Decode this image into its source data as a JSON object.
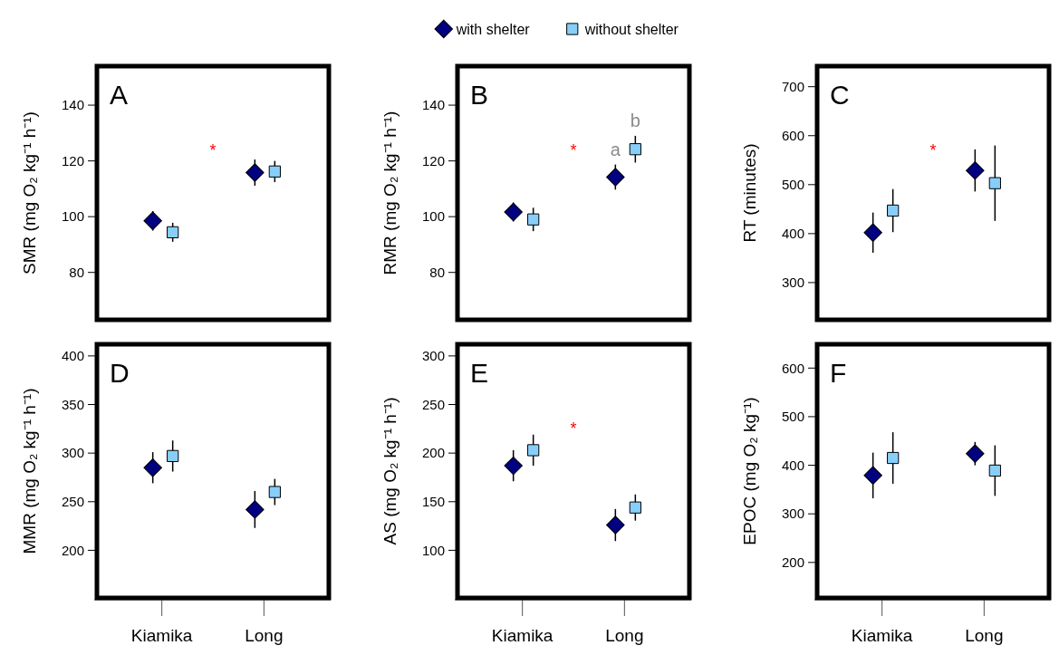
{
  "chart_data": [
    {
      "type": "scatter",
      "title": "A",
      "ylabel": "SMR (mg O₂ kg⁻¹ h⁻¹)",
      "categories": [
        "Kiamika",
        "Long"
      ],
      "ylim": [
        63,
        154
      ],
      "yticks": [
        80,
        100,
        120,
        140
      ],
      "tick_labels": "y",
      "legend": "top",
      "series": [
        {
          "name": "with shelter",
          "color": "#000080",
          "marker": "diamond",
          "x": [
            "Kiamika",
            "Long"
          ],
          "values": [
            98.5,
            115.8
          ],
          "errors": [
            3.5,
            4.7
          ]
        },
        {
          "name": "without shelter",
          "color": "#87cefa",
          "marker": "square",
          "x": [
            "Kiamika",
            "Long"
          ],
          "values": [
            94.4,
            116.2
          ],
          "errors": [
            3.4,
            3.8
          ]
        }
      ],
      "annotations": [
        "*"
      ]
    },
    {
      "type": "scatter",
      "title": "B",
      "ylabel": "RMR (mg O₂ kg⁻¹ h⁻¹)",
      "categories": [
        "Kiamika",
        "Long"
      ],
      "ylim": [
        63,
        154
      ],
      "yticks": [
        80,
        100,
        120,
        140
      ],
      "tick_labels": "y",
      "series": [
        {
          "color": "#000080",
          "marker": "diamond",
          "x": [
            "Kiamika",
            "Long"
          ],
          "values": [
            101.7,
            114.2
          ],
          "errors": [
            3.4,
            4.5
          ]
        },
        {
          "color": "#87cefa",
          "marker": "square",
          "x": [
            "Kiamika",
            "Long"
          ],
          "values": [
            99.0,
            124.2
          ],
          "errors": [
            4.2,
            4.8
          ]
        }
      ],
      "annotations": [
        "*",
        "a",
        "b"
      ]
    },
    {
      "type": "scatter",
      "title": "C",
      "ylabel": "RT (minutes)",
      "categories": [
        "Kiamika",
        "Long"
      ],
      "ylim": [
        224,
        742
      ],
      "yticks": [
        300,
        400,
        500,
        600,
        700
      ],
      "tick_labels": "y",
      "series": [
        {
          "color": "#000080",
          "marker": "diamond",
          "x": [
            "Kiamika",
            "Long"
          ],
          "values": [
            402,
            529
          ],
          "errors": [
            41,
            43
          ]
        },
        {
          "color": "#87cefa",
          "marker": "square",
          "x": [
            "Kiamika",
            "Long"
          ],
          "values": [
            447,
            503
          ],
          "errors": [
            44,
            77
          ]
        }
      ],
      "annotations": [
        "*"
      ]
    },
    {
      "type": "scatter",
      "title": "D",
      "ylabel": "MMR (mg O₂ kg⁻¹ h⁻¹)",
      "categories": [
        "Kiamika",
        "Long"
      ],
      "ylim": [
        151,
        412
      ],
      "yticks": [
        200,
        250,
        300,
        350,
        400
      ],
      "series": [
        {
          "color": "#000080",
          "marker": "diamond",
          "x": [
            "Kiamika",
            "Long"
          ],
          "values": [
            285,
            242
          ],
          "errors": [
            16,
            19
          ]
        },
        {
          "color": "#87cefa",
          "marker": "square",
          "x": [
            "Kiamika",
            "Long"
          ],
          "values": [
            297,
            260
          ],
          "errors": [
            16,
            13.5
          ]
        }
      ]
    },
    {
      "type": "scatter",
      "title": "E",
      "ylabel": "AS (mg O₂ kg⁻¹ h⁻¹)",
      "categories": [
        "Kiamika",
        "Long"
      ],
      "ylim": [
        51,
        312
      ],
      "yticks": [
        100,
        150,
        200,
        250,
        300
      ],
      "series": [
        {
          "color": "#000080",
          "marker": "diamond",
          "x": [
            "Kiamika",
            "Long"
          ],
          "values": [
            187,
            126
          ],
          "errors": [
            16,
            16.5
          ]
        },
        {
          "color": "#87cefa",
          "marker": "square",
          "x": [
            "Kiamika",
            "Long"
          ],
          "values": [
            203,
            144
          ],
          "errors": [
            16,
            13.5
          ]
        }
      ],
      "annotations": [
        "*"
      ]
    },
    {
      "type": "scatter",
      "title": "F",
      "ylabel": "EPOC (mg O₂ kg⁻¹)",
      "categories": [
        "Kiamika",
        "Long"
      ],
      "ylim": [
        127,
        649
      ],
      "yticks": [
        200,
        300,
        400,
        500,
        600
      ],
      "series": [
        {
          "color": "#000080",
          "marker": "diamond",
          "x": [
            "Kiamika",
            "Long"
          ],
          "values": [
            379,
            424
          ],
          "errors": [
            47,
            24
          ]
        },
        {
          "color": "#87cefa",
          "marker": "square",
          "x": [
            "Kiamika",
            "Long"
          ],
          "values": [
            415,
            389
          ],
          "errors": [
            53,
            52
          ]
        }
      ]
    }
  ]
}
